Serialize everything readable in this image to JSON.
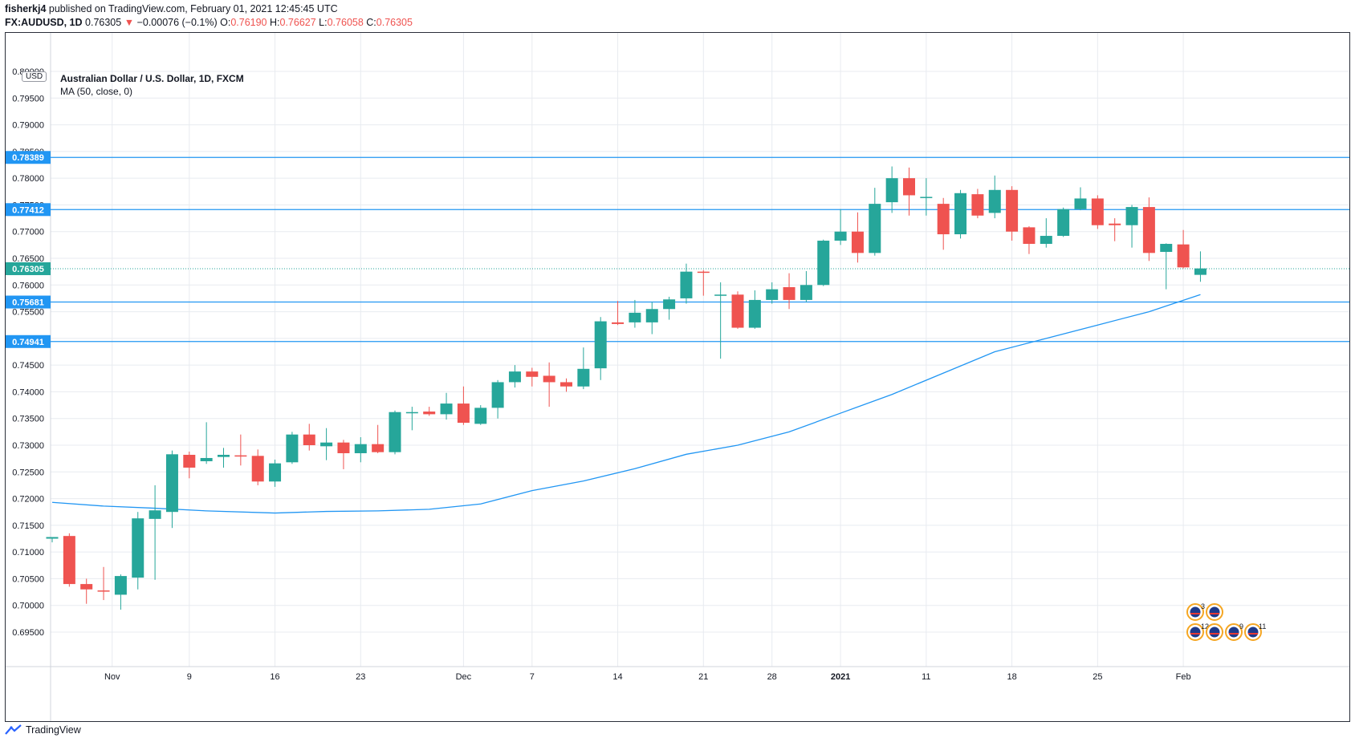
{
  "header": {
    "author": "fisherkj4",
    "published_text": "published on TradingView.com, February 01, 2021 12:45:45 UTC",
    "symbol": "FX:AUDUSD, 1D",
    "last": "0.76305",
    "change_arrow": "▼",
    "change": "−0.00076 (−0.1%)",
    "o_label": "O:",
    "o_value": "0.76190",
    "h_label": "H:",
    "h_value": "0.76627",
    "l_label": "L:",
    "l_value": "0.76058",
    "c_label": "C:",
    "c_value": "0.76305"
  },
  "legend": {
    "title": "Australian Dollar / U.S. Dollar, 1D, FXCM",
    "indicator": "MA (50, close, 0)",
    "currency": "USD"
  },
  "footer": {
    "brand": "TradingView"
  },
  "colors": {
    "up": "#26a69a",
    "down": "#ef5350",
    "ma": "#2196f3",
    "hline": "#2196f3",
    "hline_label_bg": "#2196f3",
    "last_price_bg": "#26a69a",
    "grid": "#e8ebf0"
  },
  "chart_data": {
    "type": "candlestick",
    "title": "Australian Dollar / U.S. Dollar, 1D, FXCM",
    "ylim": [
      0.6925,
      0.8055
    ],
    "yticks": [
      "0.69500",
      "0.70000",
      "0.70500",
      "0.71000",
      "0.71500",
      "0.72000",
      "0.72500",
      "0.73000",
      "0.73500",
      "0.74000",
      "0.74500",
      "0.75000",
      "0.75500",
      "0.76000",
      "0.76500",
      "0.77000",
      "0.77500",
      "0.78000",
      "0.78500",
      "0.79000",
      "0.79500",
      "0.80000"
    ],
    "xticks": [
      {
        "label": "Nov",
        "idx": 3.5
      },
      {
        "label": "9",
        "idx": 8
      },
      {
        "label": "16",
        "idx": 13
      },
      {
        "label": "23",
        "idx": 18
      },
      {
        "label": "Dec",
        "idx": 24
      },
      {
        "label": "7",
        "idx": 28
      },
      {
        "label": "14",
        "idx": 33
      },
      {
        "label": "21",
        "idx": 38
      },
      {
        "label": "28",
        "idx": 42
      },
      {
        "label": "2021",
        "idx": 46
      },
      {
        "label": "11",
        "idx": 51
      },
      {
        "label": "18",
        "idx": 56
      },
      {
        "label": "25",
        "idx": 61
      },
      {
        "label": "Feb",
        "idx": 66
      }
    ],
    "candles": [
      {
        "o": 0.7125,
        "h": 0.7128,
        "l": 0.7118,
        "c": 0.7128
      },
      {
        "o": 0.713,
        "h": 0.7135,
        "l": 0.7035,
        "c": 0.704
      },
      {
        "o": 0.704,
        "h": 0.705,
        "l": 0.7003,
        "c": 0.703
      },
      {
        "o": 0.7028,
        "h": 0.7072,
        "l": 0.701,
        "c": 0.7026
      },
      {
        "o": 0.702,
        "h": 0.7058,
        "l": 0.6992,
        "c": 0.7055
      },
      {
        "o": 0.7052,
        "h": 0.7175,
        "l": 0.703,
        "c": 0.7163
      },
      {
        "o": 0.7162,
        "h": 0.7225,
        "l": 0.7048,
        "c": 0.7178
      },
      {
        "o": 0.7175,
        "h": 0.729,
        "l": 0.7145,
        "c": 0.7283
      },
      {
        "o": 0.7282,
        "h": 0.7288,
        "l": 0.7238,
        "c": 0.7258
      },
      {
        "o": 0.727,
        "h": 0.7343,
        "l": 0.7265,
        "c": 0.7276
      },
      {
        "o": 0.7278,
        "h": 0.7295,
        "l": 0.7258,
        "c": 0.7282
      },
      {
        "o": 0.7281,
        "h": 0.732,
        "l": 0.7262,
        "c": 0.728
      },
      {
        "o": 0.728,
        "h": 0.7292,
        "l": 0.7225,
        "c": 0.7232
      },
      {
        "o": 0.7232,
        "h": 0.7273,
        "l": 0.7222,
        "c": 0.7266
      },
      {
        "o": 0.7268,
        "h": 0.7325,
        "l": 0.7265,
        "c": 0.732
      },
      {
        "o": 0.732,
        "h": 0.734,
        "l": 0.729,
        "c": 0.73
      },
      {
        "o": 0.7298,
        "h": 0.7332,
        "l": 0.7272,
        "c": 0.7305
      },
      {
        "o": 0.7305,
        "h": 0.731,
        "l": 0.7255,
        "c": 0.7285
      },
      {
        "o": 0.7285,
        "h": 0.7315,
        "l": 0.7268,
        "c": 0.7302
      },
      {
        "o": 0.7302,
        "h": 0.7338,
        "l": 0.7285,
        "c": 0.7287
      },
      {
        "o": 0.7287,
        "h": 0.7365,
        "l": 0.7283,
        "c": 0.7362
      },
      {
        "o": 0.736,
        "h": 0.7372,
        "l": 0.7328,
        "c": 0.7362
      },
      {
        "o": 0.7363,
        "h": 0.7372,
        "l": 0.7355,
        "c": 0.7358
      },
      {
        "o": 0.7358,
        "h": 0.7398,
        "l": 0.7348,
        "c": 0.7378
      },
      {
        "o": 0.7378,
        "h": 0.741,
        "l": 0.7338,
        "c": 0.7342
      },
      {
        "o": 0.734,
        "h": 0.7375,
        "l": 0.7338,
        "c": 0.737
      },
      {
        "o": 0.737,
        "h": 0.7422,
        "l": 0.735,
        "c": 0.7418
      },
      {
        "o": 0.7418,
        "h": 0.745,
        "l": 0.7408,
        "c": 0.7438
      },
      {
        "o": 0.7438,
        "h": 0.7445,
        "l": 0.741,
        "c": 0.7428
      },
      {
        "o": 0.743,
        "h": 0.7455,
        "l": 0.7372,
        "c": 0.7418
      },
      {
        "o": 0.7418,
        "h": 0.7425,
        "l": 0.74,
        "c": 0.741
      },
      {
        "o": 0.741,
        "h": 0.7483,
        "l": 0.7405,
        "c": 0.7443
      },
      {
        "o": 0.7444,
        "h": 0.754,
        "l": 0.7422,
        "c": 0.7532
      },
      {
        "o": 0.753,
        "h": 0.757,
        "l": 0.7525,
        "c": 0.7527
      },
      {
        "o": 0.753,
        "h": 0.7572,
        "l": 0.752,
        "c": 0.7548
      },
      {
        "o": 0.753,
        "h": 0.7568,
        "l": 0.7508,
        "c": 0.7555
      },
      {
        "o": 0.7555,
        "h": 0.7578,
        "l": 0.7535,
        "c": 0.7573
      },
      {
        "o": 0.7575,
        "h": 0.764,
        "l": 0.7565,
        "c": 0.7625
      },
      {
        "o": 0.7625,
        "h": 0.7628,
        "l": 0.758,
        "c": 0.7624
      },
      {
        "o": 0.7582,
        "h": 0.7605,
        "l": 0.7462,
        "c": 0.7582
      },
      {
        "o": 0.7582,
        "h": 0.7588,
        "l": 0.7518,
        "c": 0.752
      },
      {
        "o": 0.752,
        "h": 0.759,
        "l": 0.7518,
        "c": 0.7572
      },
      {
        "o": 0.7572,
        "h": 0.7605,
        "l": 0.7565,
        "c": 0.7592
      },
      {
        "o": 0.7596,
        "h": 0.7622,
        "l": 0.7555,
        "c": 0.7572
      },
      {
        "o": 0.7572,
        "h": 0.7626,
        "l": 0.7568,
        "c": 0.76
      },
      {
        "o": 0.76,
        "h": 0.7685,
        "l": 0.7598,
        "c": 0.7683
      },
      {
        "o": 0.7683,
        "h": 0.7742,
        "l": 0.7675,
        "c": 0.77
      },
      {
        "o": 0.77,
        "h": 0.7736,
        "l": 0.7642,
        "c": 0.766
      },
      {
        "o": 0.766,
        "h": 0.7782,
        "l": 0.7655,
        "c": 0.7752
      },
      {
        "o": 0.7755,
        "h": 0.7822,
        "l": 0.7735,
        "c": 0.78
      },
      {
        "o": 0.78,
        "h": 0.782,
        "l": 0.773,
        "c": 0.7768
      },
      {
        "o": 0.7765,
        "h": 0.78,
        "l": 0.773,
        "c": 0.7765
      },
      {
        "o": 0.7752,
        "h": 0.7763,
        "l": 0.7666,
        "c": 0.7695
      },
      {
        "o": 0.7695,
        "h": 0.7778,
        "l": 0.7687,
        "c": 0.7772
      },
      {
        "o": 0.777,
        "h": 0.778,
        "l": 0.7725,
        "c": 0.773
      },
      {
        "o": 0.7735,
        "h": 0.7805,
        "l": 0.7725,
        "c": 0.7778
      },
      {
        "o": 0.7778,
        "h": 0.7785,
        "l": 0.7683,
        "c": 0.77
      },
      {
        "o": 0.7708,
        "h": 0.771,
        "l": 0.7658,
        "c": 0.7677
      },
      {
        "o": 0.7677,
        "h": 0.7725,
        "l": 0.767,
        "c": 0.7692
      },
      {
        "o": 0.7692,
        "h": 0.7745,
        "l": 0.769,
        "c": 0.7742
      },
      {
        "o": 0.7742,
        "h": 0.7783,
        "l": 0.774,
        "c": 0.7762
      },
      {
        "o": 0.7762,
        "h": 0.7768,
        "l": 0.7705,
        "c": 0.7712
      },
      {
        "o": 0.7715,
        "h": 0.7725,
        "l": 0.7682,
        "c": 0.7712
      },
      {
        "o": 0.7712,
        "h": 0.775,
        "l": 0.767,
        "c": 0.7746
      },
      {
        "o": 0.7746,
        "h": 0.7764,
        "l": 0.7645,
        "c": 0.766
      },
      {
        "o": 0.7662,
        "h": 0.7678,
        "l": 0.7592,
        "c": 0.7677
      },
      {
        "o": 0.7676,
        "h": 0.7703,
        "l": 0.7631,
        "c": 0.7633
      },
      {
        "o": 0.7619,
        "h": 0.7663,
        "l": 0.7606,
        "c": 0.7631
      }
    ],
    "ma_series": {
      "name": "MA (50, close, 0)",
      "points": [
        {
          "idx": 0,
          "v": 0.7193
        },
        {
          "idx": 3,
          "v": 0.7186
        },
        {
          "idx": 6,
          "v": 0.7182
        },
        {
          "idx": 9,
          "v": 0.7177
        },
        {
          "idx": 13,
          "v": 0.7173
        },
        {
          "idx": 16,
          "v": 0.7176
        },
        {
          "idx": 19,
          "v": 0.7177
        },
        {
          "idx": 22,
          "v": 0.718
        },
        {
          "idx": 25,
          "v": 0.719
        },
        {
          "idx": 28,
          "v": 0.7215
        },
        {
          "idx": 31,
          "v": 0.7233
        },
        {
          "idx": 34,
          "v": 0.7256
        },
        {
          "idx": 37,
          "v": 0.7283
        },
        {
          "idx": 40,
          "v": 0.73
        },
        {
          "idx": 43,
          "v": 0.7325
        },
        {
          "idx": 46,
          "v": 0.736
        },
        {
          "idx": 49,
          "v": 0.7395
        },
        {
          "idx": 52,
          "v": 0.7435
        },
        {
          "idx": 55,
          "v": 0.7475
        },
        {
          "idx": 58,
          "v": 0.75
        },
        {
          "idx": 61,
          "v": 0.7525
        },
        {
          "idx": 64,
          "v": 0.755
        },
        {
          "idx": 67,
          "v": 0.7582
        }
      ]
    },
    "hlines": [
      {
        "value": 0.78389,
        "label": "0.78389"
      },
      {
        "value": 0.77412,
        "label": "0.77412"
      },
      {
        "value": 0.75681,
        "label": "0.75681"
      },
      {
        "value": 0.74941,
        "label": "0.74941"
      }
    ],
    "last_price": {
      "value": 0.76305,
      "label": "0.76305"
    },
    "events": [
      {
        "label": "3",
        "row": 0,
        "col": 0
      },
      {
        "label": "",
        "row": 0,
        "col": 1
      },
      {
        "label": "12",
        "row": 1,
        "col": 0
      },
      {
        "label": "",
        "row": 1,
        "col": 1
      },
      {
        "label": "9",
        "row": 1,
        "col": 2
      },
      {
        "label": "11",
        "row": 1,
        "col": 3
      }
    ]
  }
}
